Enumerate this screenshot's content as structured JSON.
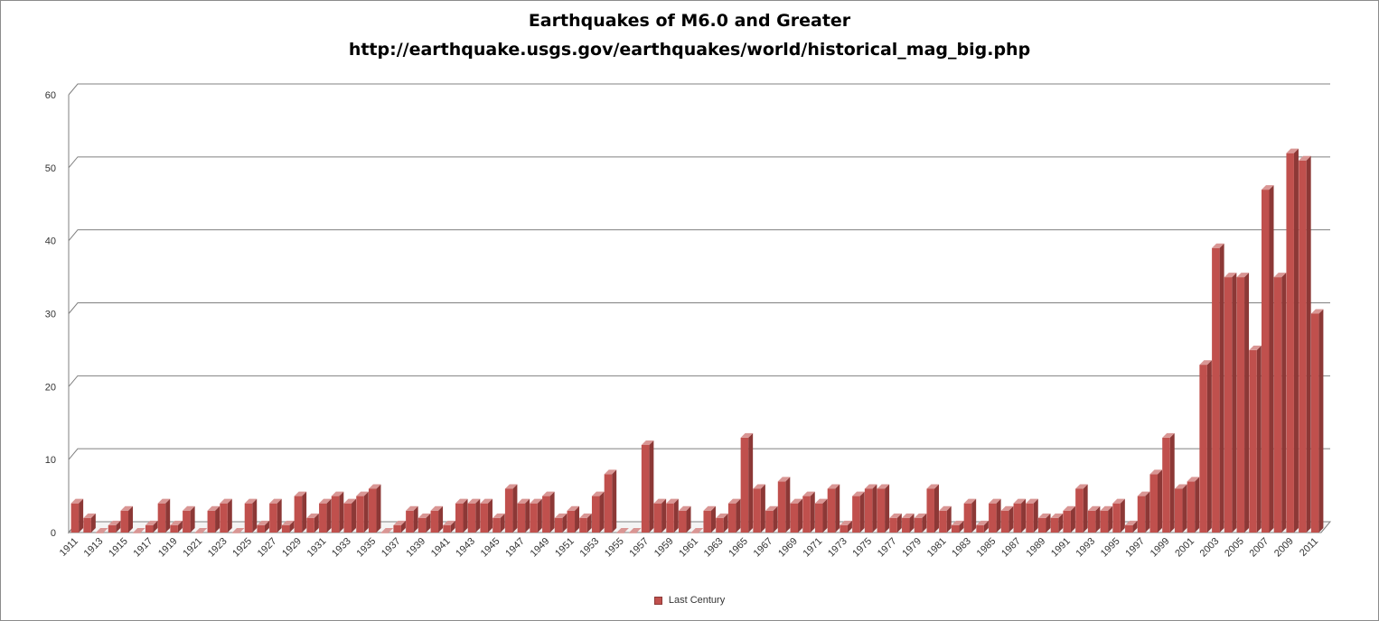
{
  "chart_data": {
    "type": "bar",
    "title": "Earthquakes of M6.0 and Greater",
    "subtitle": "http://earthquake.usgs.gov/earthquakes/world/historical_mag_big.php",
    "xlabel": "",
    "ylabel": "",
    "ylim": [
      0,
      60
    ],
    "yticks": [
      0,
      10,
      20,
      30,
      40,
      50,
      60
    ],
    "grid": true,
    "legend_position": "bottom",
    "bar_color": "#c0504d",
    "categories": [
      "1911",
      "1912",
      "1913",
      "1914",
      "1915",
      "1916",
      "1917",
      "1918",
      "1919",
      "1920",
      "1921",
      "1922",
      "1923",
      "1924",
      "1925",
      "1926",
      "1927",
      "1928",
      "1929",
      "1930",
      "1931",
      "1932",
      "1933",
      "1934",
      "1935",
      "1936",
      "1937",
      "1938",
      "1939",
      "1940",
      "1941",
      "1942",
      "1943",
      "1944",
      "1945",
      "1946",
      "1947",
      "1948",
      "1949",
      "1950",
      "1951",
      "1952",
      "1953",
      "1954",
      "1955",
      "1956",
      "1957",
      "1958",
      "1959",
      "1960",
      "1961",
      "1962",
      "1963",
      "1964",
      "1965",
      "1966",
      "1967",
      "1968",
      "1969",
      "1970",
      "1971",
      "1972",
      "1973",
      "1974",
      "1975",
      "1976",
      "1977",
      "1978",
      "1979",
      "1980",
      "1981",
      "1982",
      "1983",
      "1984",
      "1985",
      "1986",
      "1987",
      "1988",
      "1989",
      "1990",
      "1991",
      "1992",
      "1993",
      "1994",
      "1995",
      "1996",
      "1997",
      "1998",
      "1999",
      "2000",
      "2001",
      "2002",
      "2003",
      "2004",
      "2005",
      "2006",
      "2007",
      "2008",
      "2009",
      "2010",
      "2011"
    ],
    "tick_labels": [
      "1911",
      "1913",
      "1915",
      "1917",
      "1919",
      "1921",
      "1923",
      "1925",
      "1927",
      "1929",
      "1931",
      "1933",
      "1935",
      "1937",
      "1939",
      "1941",
      "1943",
      "1945",
      "1947",
      "1949",
      "1951",
      "1953",
      "1955",
      "1957",
      "1959",
      "1961",
      "1963",
      "1965",
      "1967",
      "1969",
      "1971",
      "1973",
      "1975",
      "1977",
      "1979",
      "1981",
      "1983",
      "1985",
      "1987",
      "1989",
      "1991",
      "1993",
      "1995",
      "1997",
      "1999",
      "2001",
      "2003",
      "2005",
      "2007",
      "2009",
      "2011"
    ],
    "series": [
      {
        "name": "Last Century",
        "values": [
          4,
          2,
          0,
          1,
          3,
          0,
          1,
          4,
          1,
          3,
          0,
          3,
          4,
          0,
          4,
          1,
          4,
          1,
          5,
          2,
          4,
          5,
          4,
          5,
          6,
          0,
          1,
          3,
          2,
          3,
          1,
          4,
          4,
          4,
          2,
          6,
          4,
          4,
          5,
          2,
          3,
          2,
          5,
          8,
          0,
          0,
          12,
          4,
          4,
          3,
          0,
          3,
          2,
          4,
          13,
          6,
          3,
          7,
          4,
          5,
          4,
          6,
          1,
          5,
          6,
          6,
          2,
          2,
          2,
          6,
          3,
          1,
          4,
          1,
          4,
          3,
          4,
          4,
          2,
          2,
          3,
          6,
          3,
          3,
          4,
          1,
          5,
          8,
          13,
          6,
          7,
          23,
          39,
          35,
          35,
          25,
          47,
          35,
          52,
          51,
          30
        ]
      }
    ]
  }
}
